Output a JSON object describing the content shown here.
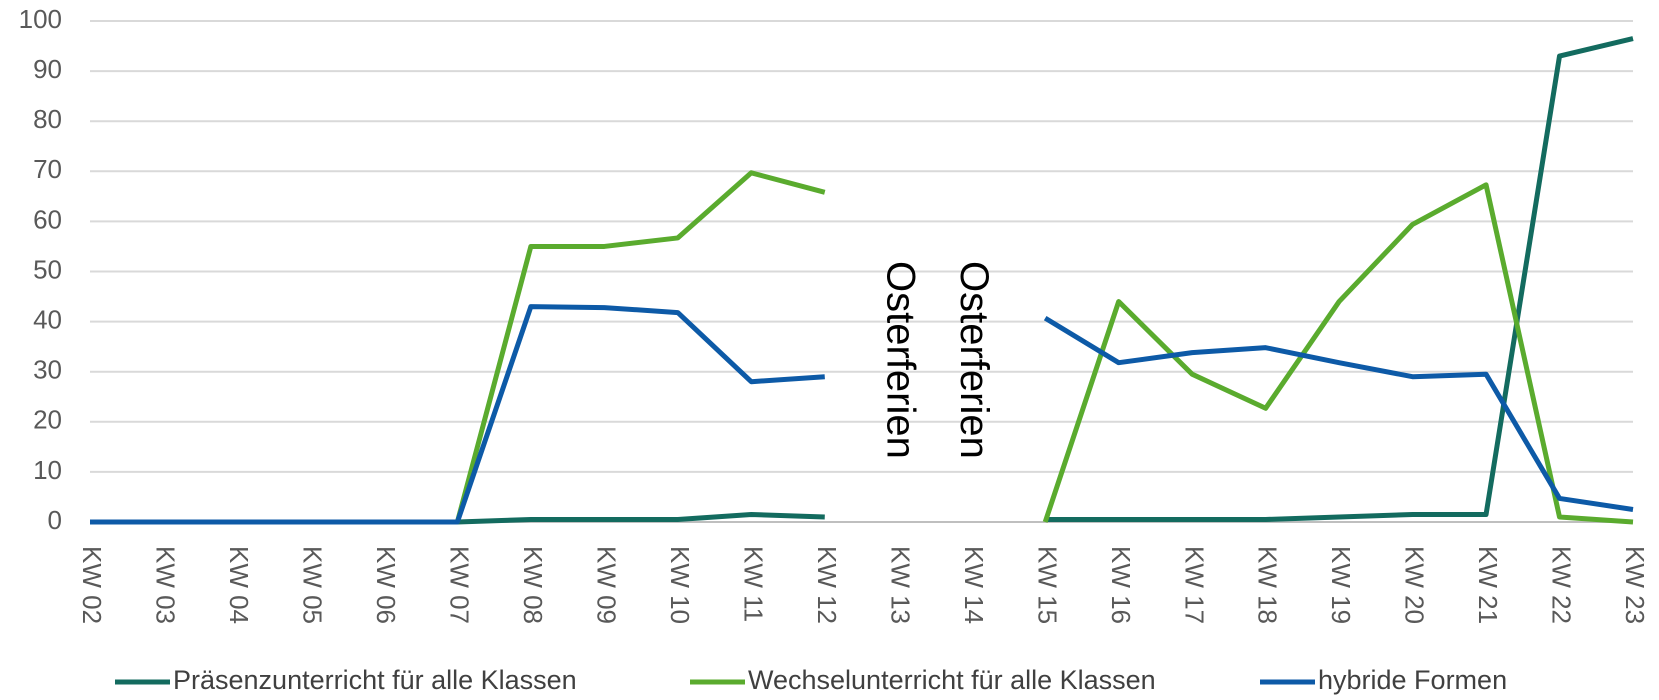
{
  "chart_data": {
    "type": "line",
    "categories": [
      "KW 02",
      "KW 03",
      "KW 04",
      "KW 05",
      "KW 06",
      "KW 07",
      "KW 08",
      "KW 09",
      "KW 10",
      "KW 11",
      "KW 12",
      "KW 13",
      "KW 14",
      "KW 15",
      "KW 16",
      "KW 17",
      "KW 18",
      "KW 19",
      "KW 20",
      "KW 21",
      "KW 22",
      "KW 23"
    ],
    "series": [
      {
        "name": "Präsenzunterricht für alle Klassen",
        "color": "#136b5f",
        "values": [
          0,
          0,
          0,
          0,
          0,
          0,
          0.5,
          0.5,
          0.5,
          1.5,
          1,
          null,
          null,
          0.5,
          0.5,
          0.5,
          0.5,
          1,
          1.5,
          1.5,
          93,
          96.5
        ]
      },
      {
        "name": "Wechselunterricht für alle Klassen",
        "color": "#5aab2e",
        "values": [
          0,
          0,
          0,
          0,
          0,
          0,
          55,
          55,
          56.7,
          69.7,
          65.8,
          null,
          null,
          0,
          44,
          29.5,
          22.7,
          44,
          59.4,
          67.3,
          1,
          0
        ]
      },
      {
        "name": "hybride Formen",
        "color": "#0d5aa7",
        "values": [
          0,
          0,
          0,
          0,
          0,
          0,
          43,
          42.8,
          41.8,
          28,
          29,
          null,
          null,
          40.7,
          31.8,
          33.8,
          34.8,
          31.8,
          29,
          29.5,
          4.7,
          2.5
        ]
      }
    ],
    "annotations": [
      "Osterferien",
      "Osterferien"
    ],
    "ylim": [
      0,
      100
    ],
    "yticks": [
      0,
      10,
      20,
      30,
      40,
      50,
      60,
      70,
      80,
      90,
      100
    ],
    "grid": true,
    "legend": "bottom"
  }
}
